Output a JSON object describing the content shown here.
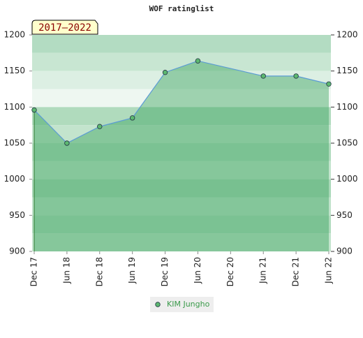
{
  "chart_data": {
    "type": "area",
    "title": "WOF ratinglist",
    "annotation": "2017–2022",
    "x": [
      0,
      6,
      12,
      18,
      24,
      30,
      42,
      48,
      54
    ],
    "xlim": [
      0,
      54
    ],
    "xticks": [
      {
        "value": 0,
        "label": "Dec 17"
      },
      {
        "value": 6,
        "label": "Jun 18"
      },
      {
        "value": 12,
        "label": "Dec 18"
      },
      {
        "value": 18,
        "label": "Jun 19"
      },
      {
        "value": 24,
        "label": "Dec 19"
      },
      {
        "value": 30,
        "label": "Jun 20"
      },
      {
        "value": 36,
        "label": "Dec 20"
      },
      {
        "value": 42,
        "label": "Jun 21"
      },
      {
        "value": 48,
        "label": "Dec 21"
      },
      {
        "value": 54,
        "label": "Jun 22"
      }
    ],
    "series": [
      {
        "name": "KIM Jungho",
        "color": "#5cb870",
        "line_color": "#5b9bd5",
        "values": [
          1096,
          1050,
          1073,
          1085,
          1148,
          1164,
          1143,
          1143,
          1132
        ]
      }
    ],
    "ylim": [
      900,
      1200
    ],
    "yticks": [
      900,
      950,
      1000,
      1050,
      1100,
      1150,
      1200
    ],
    "y2lim": [
      900,
      1200
    ],
    "y2ticks": [
      900,
      950,
      1000,
      1050,
      1100,
      1150,
      1200
    ],
    "legend": "bottom"
  }
}
